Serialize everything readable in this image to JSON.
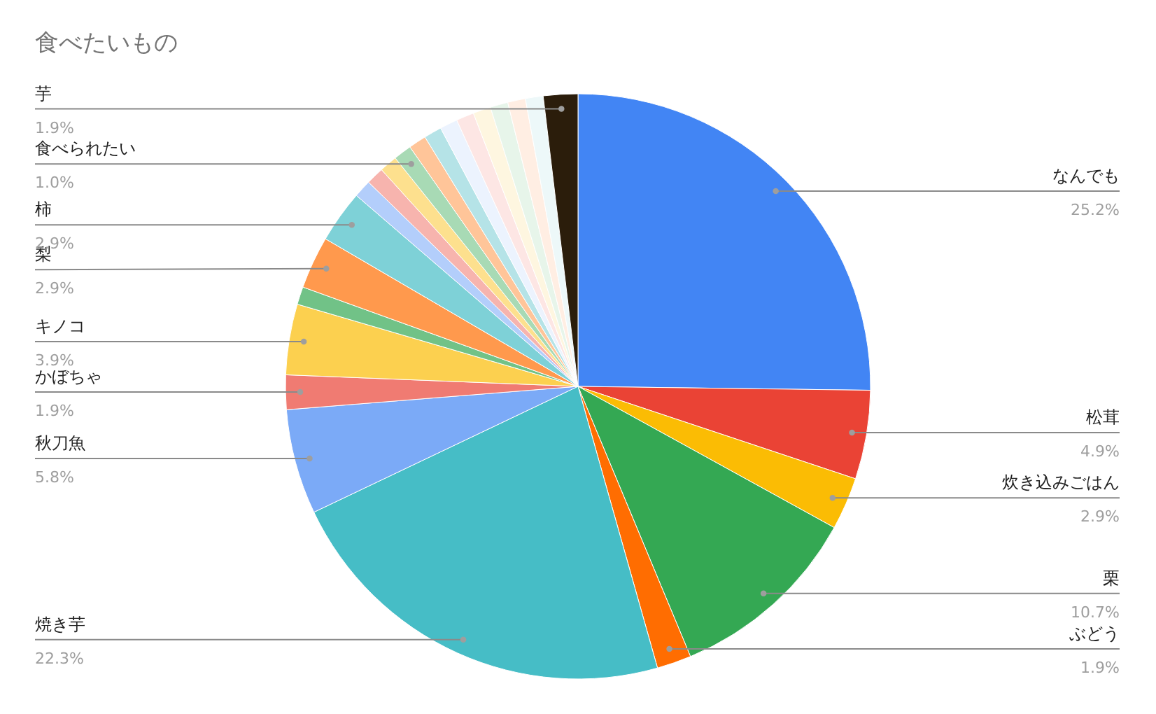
{
  "chart_data": {
    "type": "pie",
    "title": "食べたいもの",
    "categories": [
      "なんでも",
      "松茸",
      "炊き込みごはん",
      "栗",
      "ぶどう",
      "焼き芋",
      "秋刀魚",
      "かぼちゃ",
      "キノコ",
      null,
      "梨",
      "柿",
      null,
      null,
      null,
      "食べられたい",
      null,
      null,
      null,
      null,
      null,
      null,
      null,
      null,
      "芋"
    ],
    "values": [
      25.2,
      4.9,
      2.9,
      10.7,
      1.9,
      22.3,
      5.8,
      1.9,
      3.9,
      0.98,
      2.9,
      2.9,
      0.98,
      0.98,
      0.98,
      1.0,
      0.98,
      0.98,
      0.98,
      0.98,
      0.98,
      0.98,
      0.98,
      0.98,
      1.9
    ],
    "value_labels": [
      "25.2%",
      "4.9%",
      "2.9%",
      "10.7%",
      "1.9%",
      "22.3%",
      "5.8%",
      "1.9%",
      "3.9%",
      null,
      "2.9%",
      "2.9%",
      null,
      null,
      null,
      "1.0%",
      null,
      null,
      null,
      null,
      null,
      null,
      null,
      null,
      "1.9%"
    ],
    "colors": [
      "#4285f4",
      "#ea4335",
      "#fbbc04",
      "#34a853",
      "#ff6d01",
      "#46bdc6",
      "#7baaf7",
      "#f07b72",
      "#fcd04f",
      "#71c287",
      "#ff994d",
      "#7ed1d7",
      "#b3cefb",
      "#f7b4ae",
      "#fde08e",
      "#a8dab5",
      "#ffc599",
      "#b5e3e7",
      "#ecf3fe",
      "#fde6e4",
      "#fef6e0",
      "#e7f5ea",
      "#ffeee3",
      "#edf8f9",
      "#2b1d0b"
    ],
    "legend": false
  }
}
